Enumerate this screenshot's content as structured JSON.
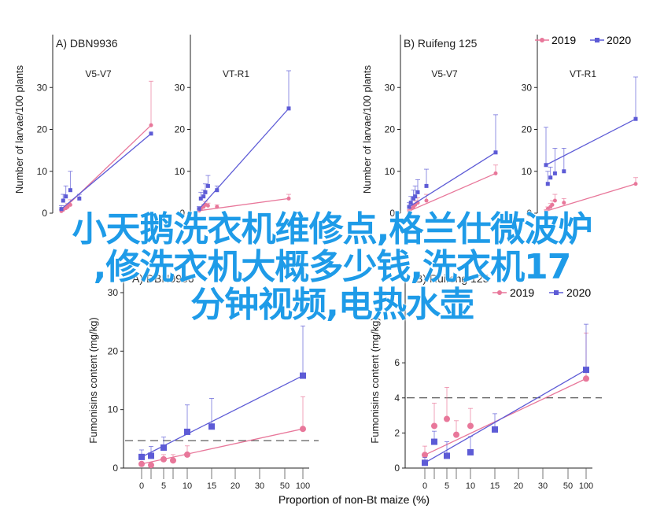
{
  "legend": {
    "items": [
      "2019",
      "2020"
    ],
    "colors": {
      "2019": "#e8779a",
      "2020": "#5d5bd6"
    },
    "placement": "top-right"
  },
  "overlay_text": [
    "小天鹅洗衣机维修点,格兰仕微波炉",
    ",修洗衣机大概多少钱,洗衣机17",
    "分钟视频,电热水壶"
  ],
  "chart_data": [
    {
      "type": "scatter",
      "panel": "A) DBN9936",
      "subtitle": "V5-V7",
      "ylabel": "Number of larvae/100 plants",
      "ylim": [
        0,
        40
      ],
      "yticks": [
        0,
        10,
        20,
        30
      ],
      "xlim": [
        0,
        100
      ],
      "series": [
        {
          "name": "2019",
          "x": [
            0,
            2,
            5,
            7,
            10,
            100
          ],
          "y": [
            0.5,
            0.8,
            1.2,
            1.5,
            2.0,
            21.0
          ],
          "err": [
            0.3,
            0.4,
            0.6,
            0.8,
            1.2,
            10.5
          ]
        },
        {
          "name": "2020",
          "x": [
            0,
            2,
            5,
            10,
            20,
            100
          ],
          "y": [
            1.0,
            3.0,
            4.0,
            5.5,
            3.5,
            19.0
          ],
          "err": [
            0.8,
            1.5,
            2.5,
            4.5,
            1.0,
            0
          ]
        }
      ]
    },
    {
      "type": "scatter",
      "panel": "",
      "subtitle": "VT-R1",
      "ylabel": "",
      "ylim": [
        0,
        40
      ],
      "yticks": [
        0,
        10,
        20,
        30
      ],
      "xlim": [
        0,
        100
      ],
      "series": [
        {
          "name": "2019",
          "x": [
            0,
            2,
            5,
            7,
            10,
            20,
            100
          ],
          "y": [
            0.6,
            1.0,
            1.5,
            2.0,
            1.8,
            1.5,
            3.5
          ],
          "err": [
            0.3,
            0.4,
            0.6,
            0.8,
            0.6,
            0.5,
            1.0
          ]
        },
        {
          "name": "2020",
          "x": [
            0,
            2,
            5,
            7,
            10,
            20,
            100
          ],
          "y": [
            1.0,
            3.5,
            4.0,
            5.0,
            6.5,
            5.5,
            25.0
          ],
          "err": [
            0.6,
            1.5,
            1.5,
            2.0,
            2.5,
            1.0,
            9.0
          ]
        }
      ]
    },
    {
      "type": "scatter",
      "panel": "B) Ruifeng 125",
      "subtitle": "V5-V7",
      "ylabel": "Number of larvae/100 plants",
      "ylim": [
        0,
        40
      ],
      "yticks": [
        0,
        10,
        20,
        30
      ],
      "xlim": [
        0,
        100
      ],
      "series": [
        {
          "name": "2019",
          "x": [
            0,
            2,
            5,
            7,
            10,
            20,
            100
          ],
          "y": [
            0.5,
            1.0,
            1.5,
            2.0,
            2.5,
            3.0,
            9.5
          ],
          "err": [
            0.3,
            0.5,
            0.8,
            1.0,
            1.2,
            1.5,
            2.0
          ]
        },
        {
          "name": "2020",
          "x": [
            0,
            2,
            5,
            7,
            10,
            20,
            100
          ],
          "y": [
            1.5,
            2.5,
            3.5,
            4.0,
            5.0,
            6.5,
            14.5
          ],
          "err": [
            1.0,
            1.5,
            2.0,
            2.5,
            3.0,
            4.0,
            9.0
          ]
        }
      ]
    },
    {
      "type": "scatter",
      "panel": "",
      "subtitle": "VT-R1",
      "ylabel": "",
      "ylim": [
        0,
        40
      ],
      "yticks": [
        0,
        10,
        20,
        30
      ],
      "xlim": [
        0,
        100
      ],
      "series": [
        {
          "name": "2019",
          "x": [
            0,
            2,
            5,
            7,
            10,
            20,
            100
          ],
          "y": [
            0.5,
            1.0,
            1.5,
            2.0,
            3.0,
            2.5,
            7.0
          ],
          "err": [
            0.3,
            0.5,
            0.8,
            1.0,
            1.5,
            1.0,
            1.5
          ]
        },
        {
          "name": "2020",
          "x": [
            0,
            2,
            5,
            10,
            20,
            100
          ],
          "y": [
            11.5,
            7.0,
            8.5,
            9.5,
            10.0,
            22.5
          ],
          "err": [
            9.0,
            3.0,
            2.5,
            6.0,
            5.5,
            10.0
          ]
        }
      ]
    },
    {
      "type": "scatter",
      "panel": "A) DBN9936",
      "subtitle": "",
      "xlabel": "Proportion of non-Bt maize (%)",
      "ylabel": "Fumonisins content (mg/kg)",
      "ylim": [
        0,
        30
      ],
      "yticks": [
        0,
        10,
        20,
        30
      ],
      "xlim": [
        0,
        100
      ],
      "xticks": [
        "0",
        "2.5",
        "5",
        "7.5",
        "10",
        "15",
        "20",
        "30",
        "50",
        "100"
      ],
      "threshold": 4.7,
      "series": [
        {
          "name": "2019",
          "x": [
            0,
            2.5,
            5,
            7.5,
            10,
            100
          ],
          "y": [
            0.7,
            0.5,
            1.5,
            1.3,
            2.3,
            6.7
          ],
          "err": [
            0.3,
            0.3,
            0.8,
            1.0,
            1.5,
            5.5
          ]
        },
        {
          "name": "2020",
          "x": [
            0,
            2.5,
            5,
            10,
            15,
            100
          ],
          "y": [
            1.9,
            2.1,
            3.5,
            6.2,
            7.1,
            15.8
          ],
          "err": [
            1.2,
            1.6,
            1.8,
            4.6,
            4.8,
            8.5
          ]
        }
      ]
    },
    {
      "type": "scatter",
      "panel": "B) Ruifeng 125",
      "subtitle": "",
      "xlabel": "Proportion of non-Bt maize (%)",
      "ylabel": "Fumonisins content (mg/kg)",
      "ylim": [
        0,
        10
      ],
      "yticks": [
        0,
        2,
        4,
        6
      ],
      "xlim": [
        0,
        100
      ],
      "xticks": [
        "0",
        "2.5",
        "5",
        "7.5",
        "10",
        "15",
        "20",
        "30",
        "50",
        "100"
      ],
      "threshold": 4,
      "series": [
        {
          "name": "2019",
          "x": [
            0,
            2.5,
            5,
            7.5,
            10,
            100
          ],
          "y": [
            0.75,
            2.4,
            2.8,
            1.9,
            2.4,
            5.1
          ],
          "err": [
            0.5,
            1.3,
            1.8,
            0.8,
            1.0,
            2.6
          ]
        },
        {
          "name": "2020",
          "x": [
            0,
            2.5,
            5,
            10,
            15,
            100
          ],
          "y": [
            0.3,
            1.5,
            0.7,
            0.9,
            2.2,
            5.6
          ],
          "err": [
            0.3,
            0.6,
            0.8,
            0.9,
            0.9,
            2.6
          ]
        }
      ]
    }
  ]
}
